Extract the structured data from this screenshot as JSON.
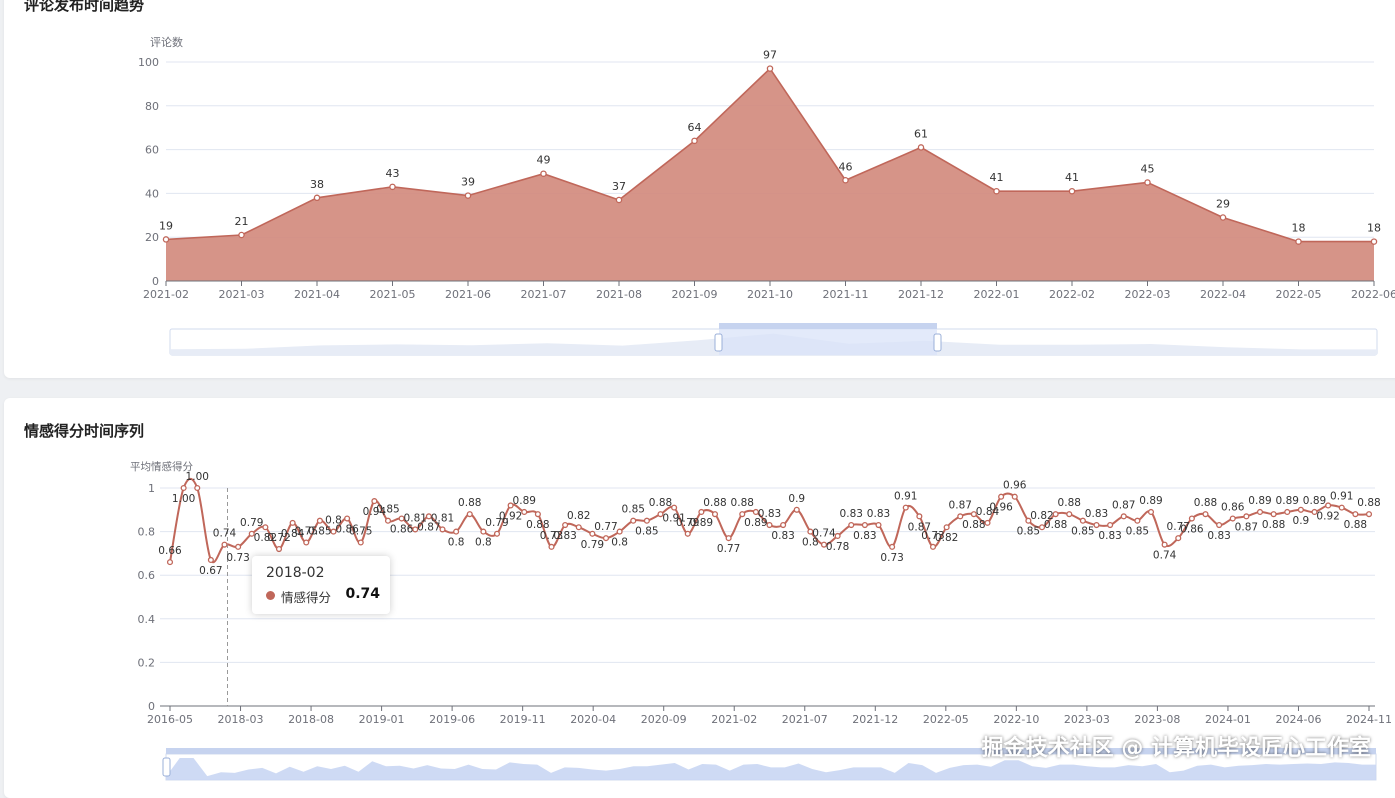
{
  "colors": {
    "accent": "#c0675a",
    "area": "#d28b7e",
    "axis": "#6e7079",
    "grid": "#e0e6f1",
    "zoom": "#d9e3f8"
  },
  "chart_data": [
    {
      "type": "area",
      "title": "评论发布时间趋势",
      "ylabel": "评论数",
      "ylim": [
        0,
        100
      ],
      "yticks": [
        0,
        20,
        40,
        60,
        80,
        100
      ],
      "categories": [
        "2021-02",
        "2021-03",
        "2021-04",
        "2021-05",
        "2021-06",
        "2021-07",
        "2021-08",
        "2021-09",
        "2021-10",
        "2021-11",
        "2021-12",
        "2022-01",
        "2022-02",
        "2022-03",
        "2022-04",
        "2022-05",
        "2022-06"
      ],
      "values": [
        19,
        21,
        38,
        43,
        39,
        49,
        37,
        64,
        97,
        46,
        61,
        41,
        41,
        45,
        29,
        18,
        18
      ],
      "data_labels": true,
      "grid": true,
      "data_zoom": true
    },
    {
      "type": "line",
      "title": "情感得分时间序列",
      "ylabel": "平均情感得分",
      "ylim": [
        0,
        1
      ],
      "yticks": [
        0,
        0.2,
        0.4,
        0.6,
        0.8,
        1
      ],
      "x_tick_labels": [
        "2016-05",
        "2018-03",
        "2018-08",
        "2019-01",
        "2019-06",
        "2019-11",
        "2020-04",
        "2020-09",
        "2021-02",
        "2021-07",
        "2021-12",
        "2022-05",
        "2022-10",
        "2023-03",
        "2023-08",
        "2024-01",
        "2024-06",
        "2024-11"
      ],
      "series": [
        {
          "name": "情感得分",
          "values": [
            0.66,
            1.0,
            1.0,
            0.67,
            0.74,
            0.73,
            0.79,
            0.82,
            0.72,
            0.84,
            0.75,
            0.85,
            0.8,
            0.86,
            0.75,
            0.94,
            0.85,
            0.86,
            0.81,
            0.87,
            0.81,
            0.8,
            0.88,
            0.8,
            0.79,
            0.92,
            0.89,
            0.88,
            0.73,
            0.83,
            0.82,
            0.79,
            0.77,
            0.8,
            0.85,
            0.85,
            0.88,
            0.91,
            0.79,
            0.89,
            0.88,
            0.77,
            0.88,
            0.89,
            0.83,
            0.83,
            0.9,
            0.8,
            0.74,
            0.78,
            0.83,
            0.83,
            0.83,
            0.73,
            0.91,
            0.87,
            0.73,
            0.82,
            0.87,
            0.88,
            0.84,
            0.96,
            0.96,
            0.85,
            0.82,
            0.88,
            0.88,
            0.85,
            0.83,
            0.83,
            0.87,
            0.85,
            0.89,
            0.74,
            0.77,
            0.86,
            0.88,
            0.83,
            0.86,
            0.87,
            0.89,
            0.88,
            0.89,
            0.9,
            0.89,
            0.92,
            0.91,
            0.88,
            0.88
          ]
        }
      ],
      "data_labels": true,
      "grid": true,
      "data_zoom": true
    }
  ],
  "tooltip": {
    "date": "2018-02",
    "series_name": "情感得分",
    "value": "0.74"
  },
  "watermark": "掘金技术社区 @ 计算机毕设匠心工作室"
}
